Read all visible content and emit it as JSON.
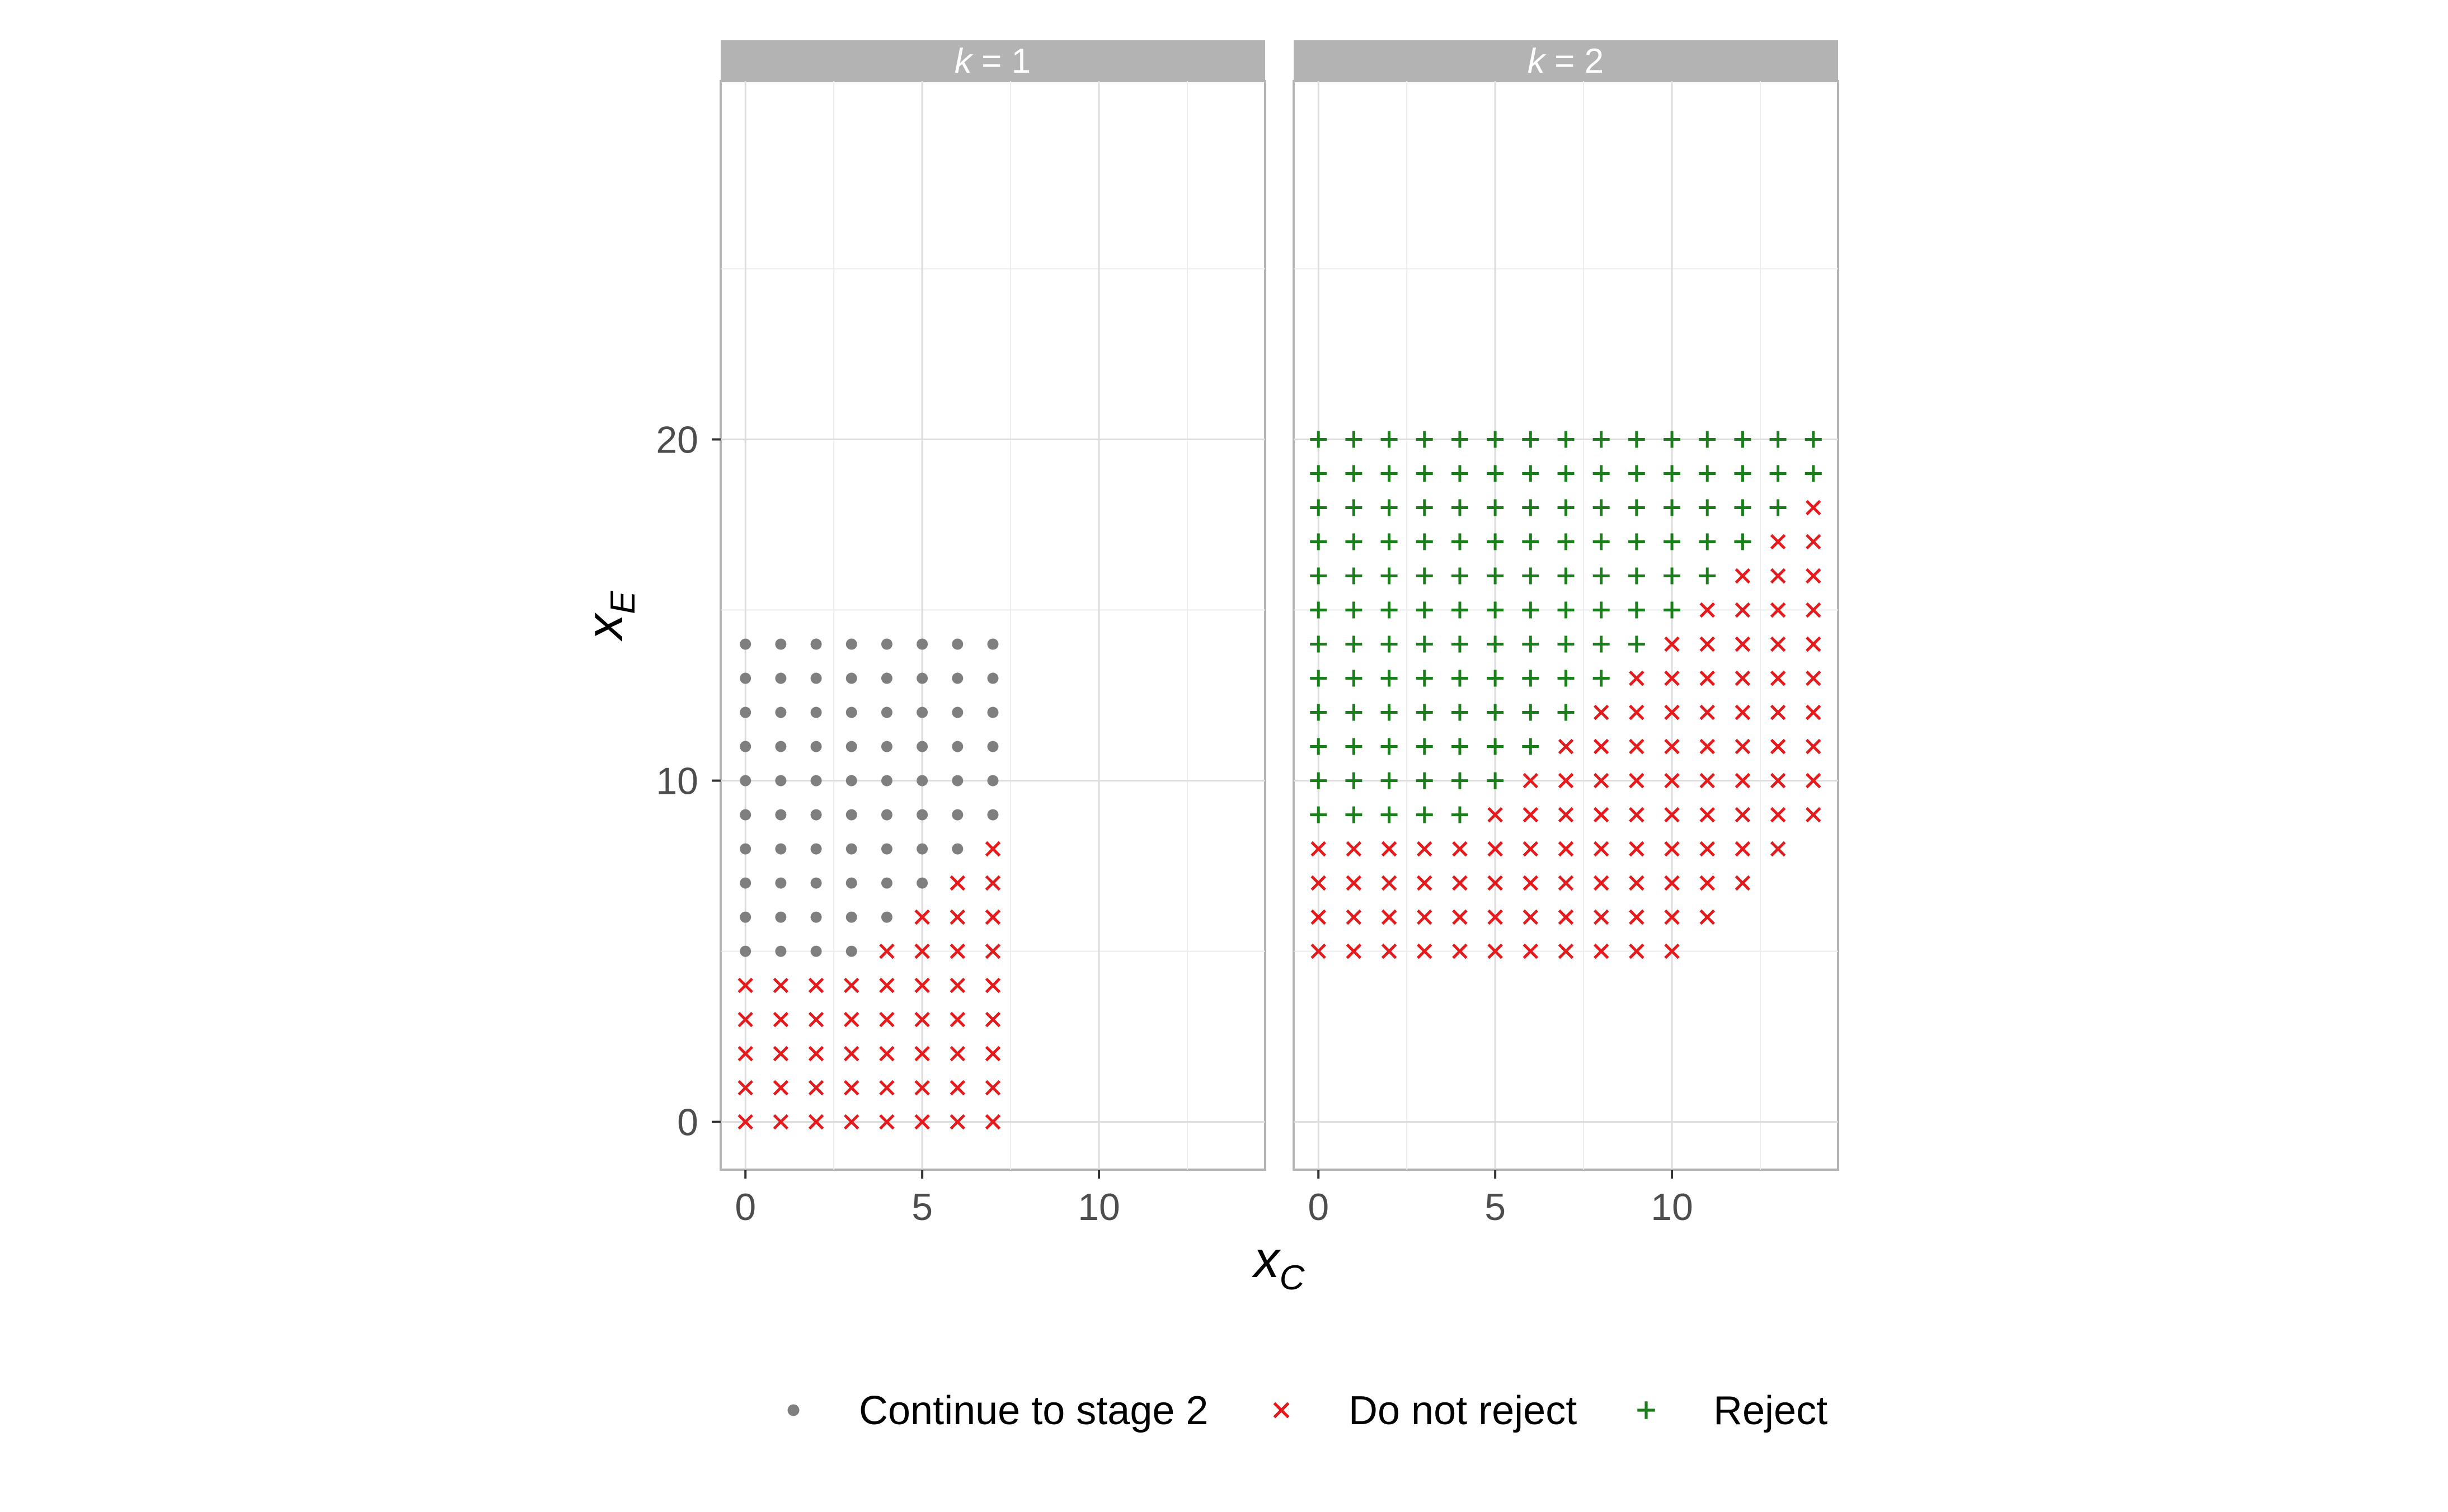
{
  "chart_data": {
    "type": "scatter",
    "facet_strip_prefix": "k",
    "facets": [
      "1",
      "2"
    ],
    "xlabel_main": "x",
    "xlabel_sub": "C",
    "ylabel_main": "x",
    "ylabel_sub": "E",
    "xlim": [
      -0.7,
      14.7
    ],
    "ylim": [
      -1.4,
      30.5
    ],
    "x_ticks": [
      "0",
      "5",
      "10"
    ],
    "y_ticks": [
      "0",
      "10",
      "20"
    ],
    "grid": true,
    "legend_position": "bottom",
    "categories": [
      {
        "key": "continue",
        "label": "Continue to stage 2",
        "shape": "circle",
        "color": "#7f7f7f"
      },
      {
        "key": "noreject",
        "label": "Do not reject",
        "shape": "cross",
        "color": "#e41a1c"
      },
      {
        "key": "reject",
        "label": "Reject",
        "shape": "plus",
        "color": "#1a7f1a"
      }
    ],
    "panel_k1": {
      "x_range": [
        0,
        7
      ],
      "y_range": [
        0,
        14
      ],
      "continue_min_y_by_x": [
        5,
        5,
        5,
        5,
        6,
        7,
        8,
        9
      ],
      "note": "points with y >= min are 'continue', else 'noreject'"
    },
    "panel_k2": {
      "x_range": [
        0,
        14
      ],
      "x_start_y": 5,
      "max_y": 20,
      "first_y_by_x": [
        5,
        5,
        5,
        5,
        5,
        5,
        5,
        5,
        5,
        5,
        5,
        6,
        7,
        8,
        9
      ],
      "reject_min_y_by_x": [
        9,
        9,
        9,
        9,
        9,
        10,
        11,
        12,
        13,
        14,
        15,
        16,
        17,
        18,
        19
      ],
      "note": "points from first_y to max_y; y >= reject_min are 'reject', else 'noreject'"
    }
  }
}
